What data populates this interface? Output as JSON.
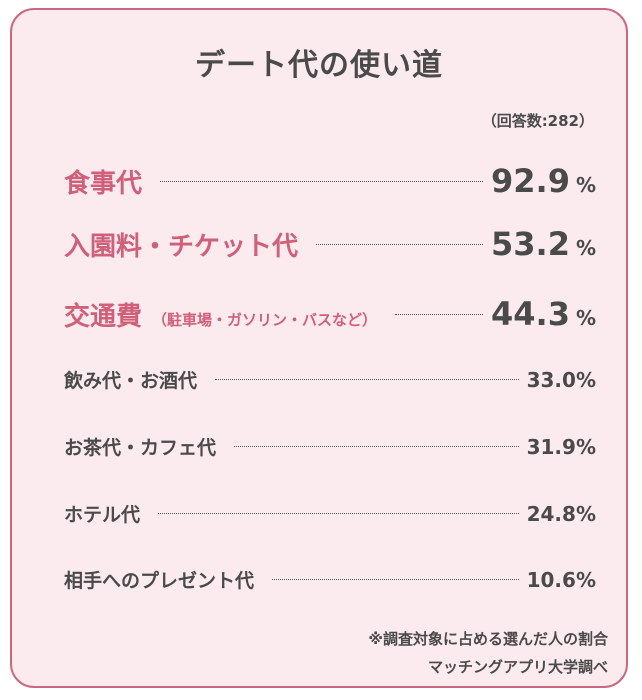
{
  "title": "デート代の使い道",
  "respondents": "（回答数:282）",
  "chart_data": {
    "type": "table",
    "title": "デート代の使い道",
    "unit": "%",
    "rows": [
      {
        "label": "食事代",
        "note": "",
        "value": 92.9,
        "display": "92.9",
        "highlight": true
      },
      {
        "label": "入園料・チケット代",
        "note": "",
        "value": 53.2,
        "display": "53.2",
        "highlight": true
      },
      {
        "label": "交通費",
        "note": "（駐車場・ガソリン・バスなど）",
        "value": 44.3,
        "display": "44.3",
        "highlight": true
      },
      {
        "label": "飲み代・お酒代",
        "note": "",
        "value": 33.0,
        "display": "33.0",
        "highlight": false
      },
      {
        "label": "お茶代・カフェ代",
        "note": "",
        "value": 31.9,
        "display": "31.9",
        "highlight": false
      },
      {
        "label": "ホテル代",
        "note": "",
        "value": 24.8,
        "display": "24.8",
        "highlight": false
      },
      {
        "label": "相手へのプレゼント代",
        "note": "",
        "value": 10.6,
        "display": "10.6",
        "highlight": false
      }
    ]
  },
  "footnote": "※調査対象に占める選んだ人の割合",
  "source": "マッチングアプリ大学調べ",
  "colors": {
    "accent": "#d0607a",
    "border": "#c9697f",
    "background": "#fbebee",
    "text": "#4a4a4a"
  }
}
